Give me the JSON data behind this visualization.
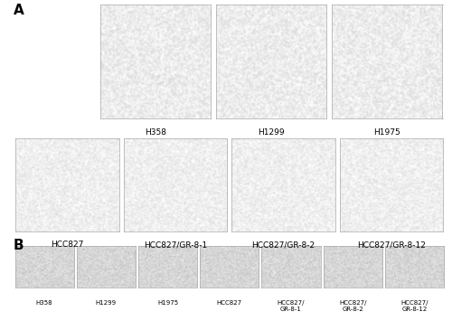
{
  "panel_A_row1": {
    "labels": [
      "H358",
      "H1299",
      "H1975"
    ],
    "colors": [
      "#e8e4de",
      "#dde4df",
      "#e2dfda"
    ]
  },
  "panel_A_row2": {
    "labels": [
      "HCC827",
      "HCC827/GR-8-1",
      "HCC827/GR-8-2",
      "HCC827/GR-8-12"
    ],
    "colors": [
      "#dddad4",
      "#dcdad4",
      "#dbd9d4",
      "#dddad5"
    ]
  },
  "panel_B": {
    "labels": [
      "H358",
      "H1299",
      "H1975",
      "HCC827",
      "HCC827/\nGR-8-1",
      "HCC827/\nGR-8-2",
      "HCC827/\nGR-8-12"
    ],
    "colors": [
      "#c8c5c1",
      "#b0a8bc",
      "#c0b6c2",
      "#c6c4c0",
      "#c2c0be",
      "#c4c2c0",
      "#c6c4c2"
    ]
  },
  "label_A": "A",
  "label_B": "B",
  "bg_color": "#ffffff",
  "font_size": 6.5,
  "label_font_size": 11
}
